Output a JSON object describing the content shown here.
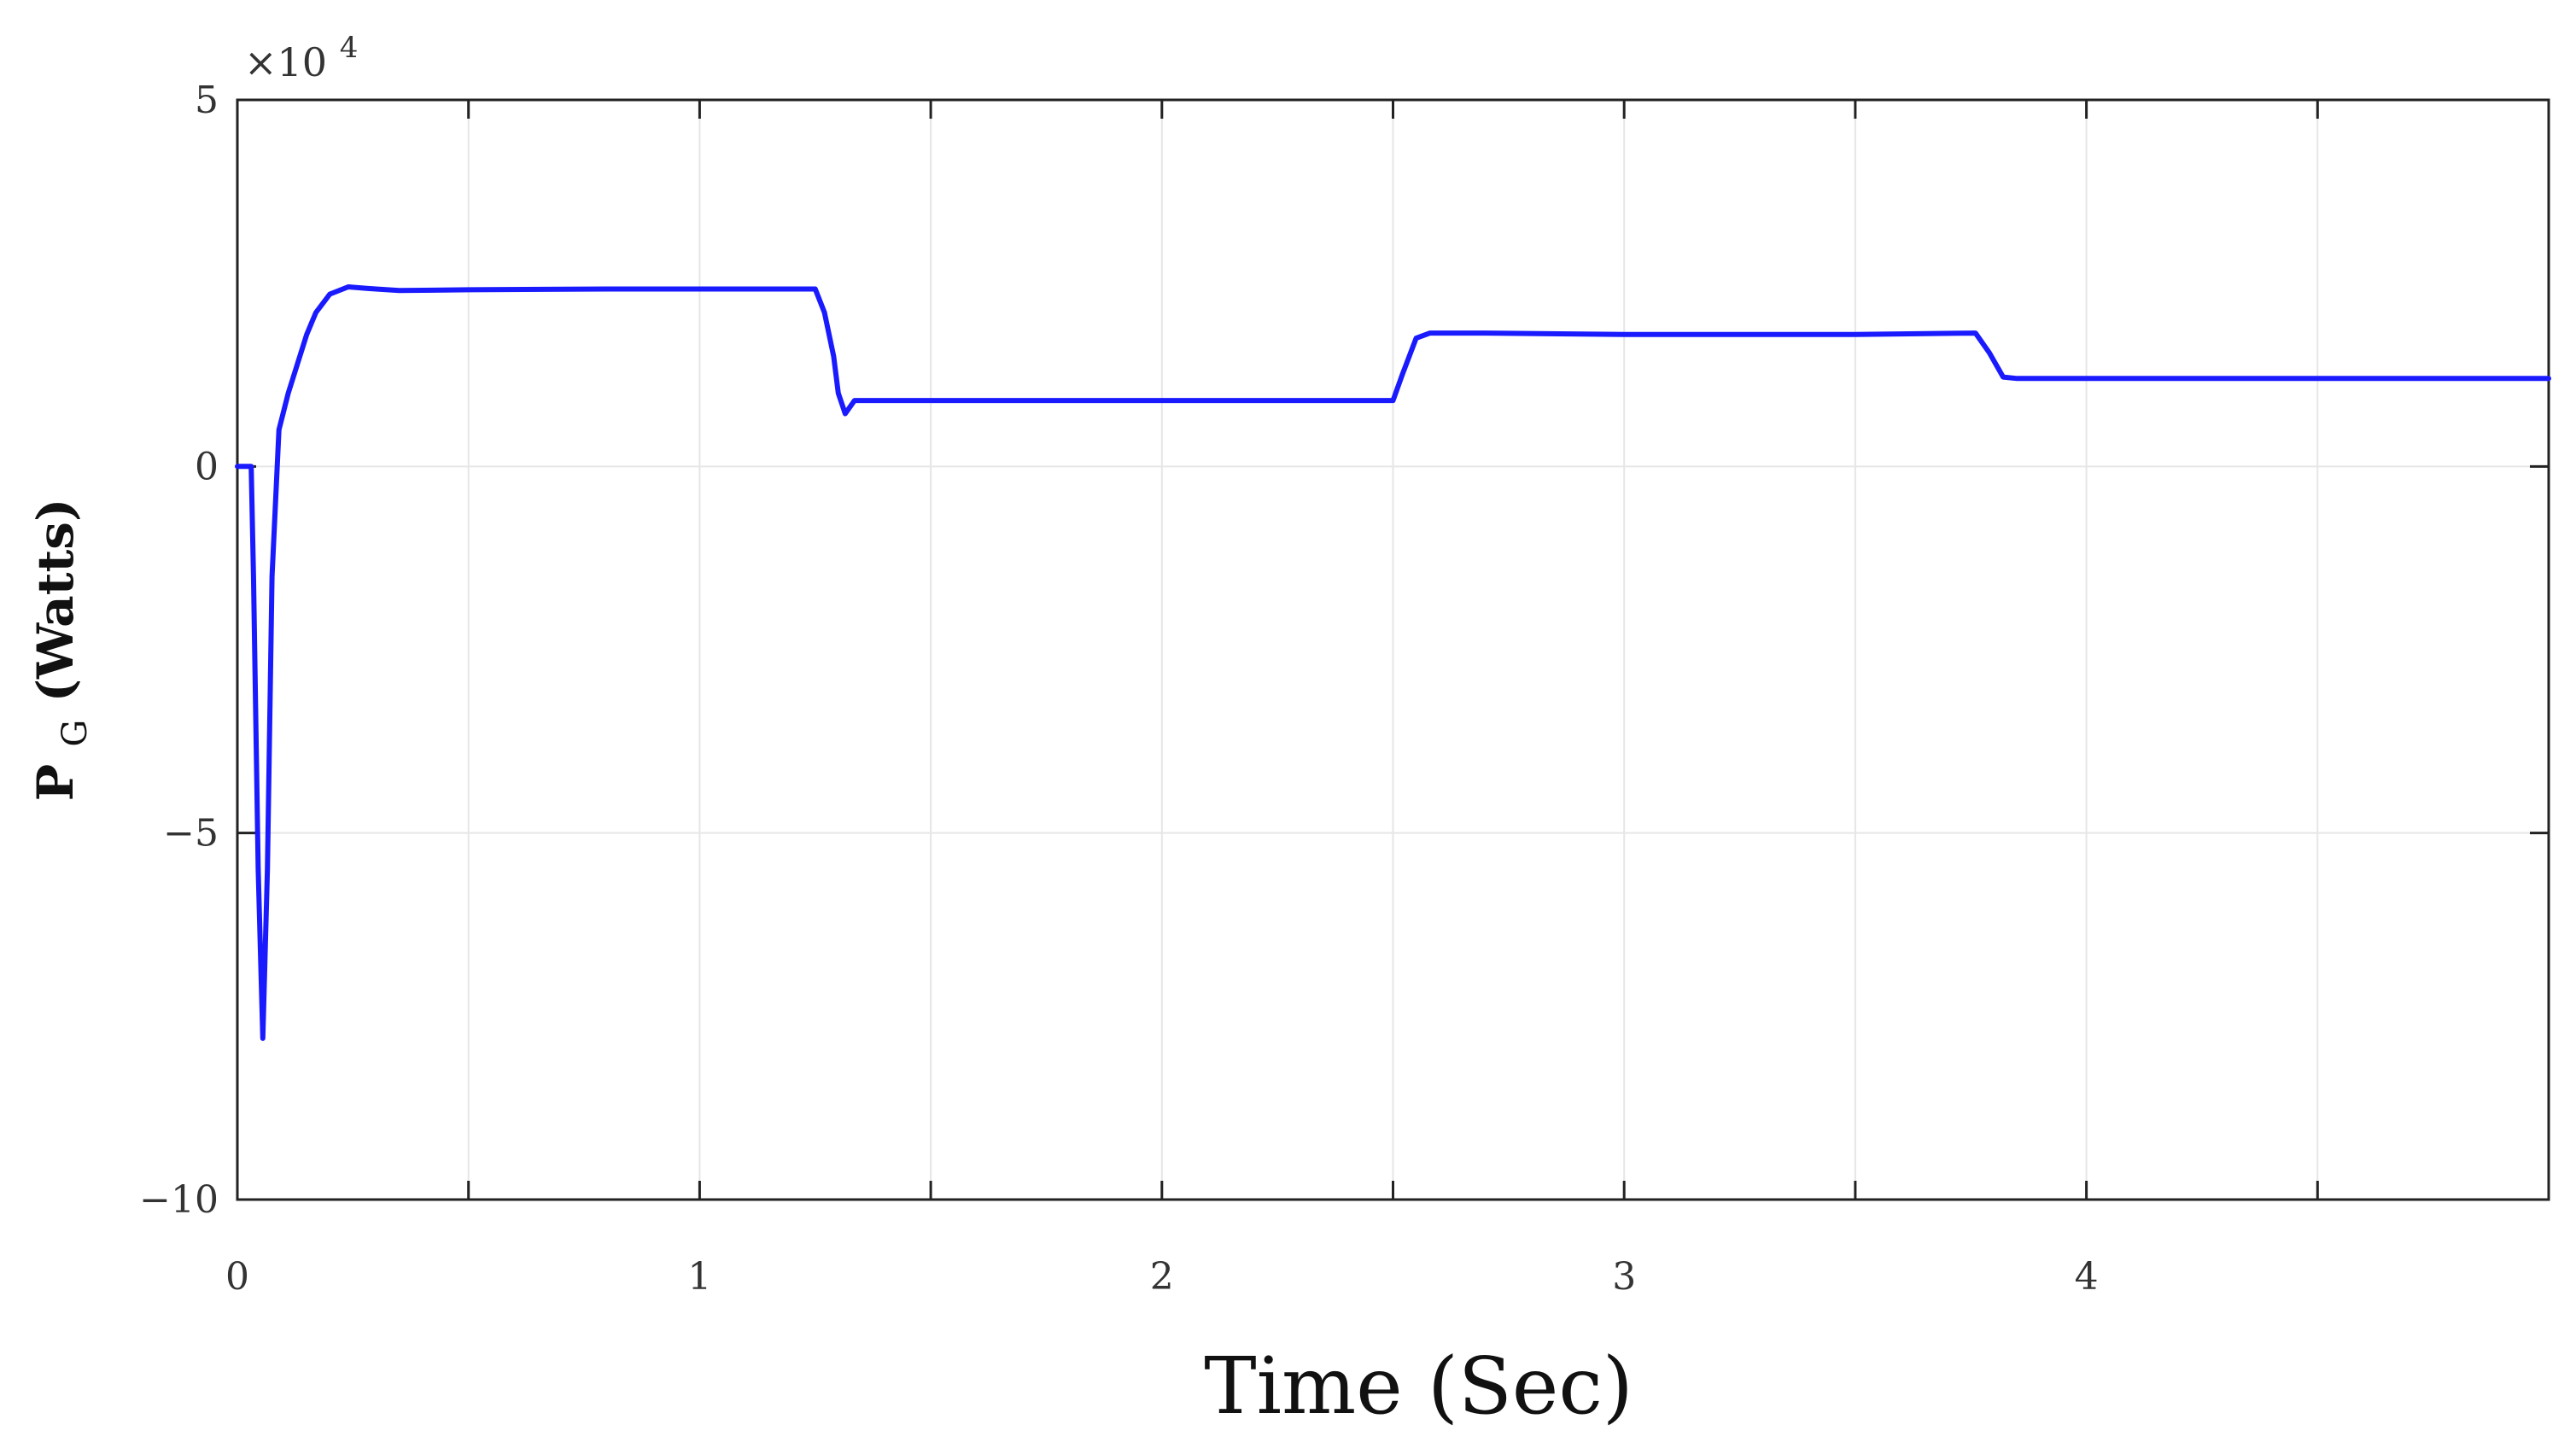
{
  "chart_data": {
    "type": "line",
    "title": "",
    "xlabel": "Time (Sec)",
    "ylabel_main": "P",
    "ylabel_sub": "G",
    "ylabel_rest": " (Watts)",
    "y_multiplier_text": "×10",
    "y_multiplier_exp": "4",
    "xlim": [
      0,
      5
    ],
    "ylim": [
      -10,
      5
    ],
    "x_ticks": [
      0,
      1,
      2,
      3,
      4
    ],
    "x_tick_labels": [
      "0",
      "1",
      "2",
      "3",
      "4"
    ],
    "x_minor_ticks": [
      0.5,
      1.5,
      2.5,
      3.5,
      4.5
    ],
    "y_ticks": [
      -10,
      -5,
      0,
      5
    ],
    "y_tick_labels": [
      "−10",
      "−5",
      "0",
      "5"
    ],
    "grid": true,
    "line_color": "#1a1aff",
    "series": [
      {
        "x": [
          0,
          0.03,
          0.035,
          0.045,
          0.055,
          0.065,
          0.075,
          0.09,
          0.11,
          0.13,
          0.15,
          0.17,
          0.2,
          0.24,
          0.28,
          0.3,
          0.35,
          0.5,
          0.8,
          1.0,
          1.25,
          1.27,
          1.29,
          1.3,
          1.315,
          1.335,
          1.4,
          1.8,
          2.2,
          2.5,
          2.52,
          2.55,
          2.58,
          2.7,
          3.0,
          3.5,
          3.76,
          3.79,
          3.82,
          3.85,
          4.2,
          5.0
        ],
        "y": [
          0,
          0,
          -1.5,
          -5.5,
          -7.8,
          -5.5,
          -1.5,
          0.5,
          1.0,
          1.4,
          1.8,
          2.1,
          2.35,
          2.45,
          2.43,
          2.42,
          2.4,
          2.41,
          2.42,
          2.42,
          2.42,
          2.1,
          1.5,
          1.0,
          0.72,
          0.9,
          0.9,
          0.9,
          0.9,
          0.9,
          1.25,
          1.75,
          1.82,
          1.82,
          1.8,
          1.8,
          1.82,
          1.55,
          1.22,
          1.2,
          1.2,
          1.2
        ]
      }
    ]
  }
}
